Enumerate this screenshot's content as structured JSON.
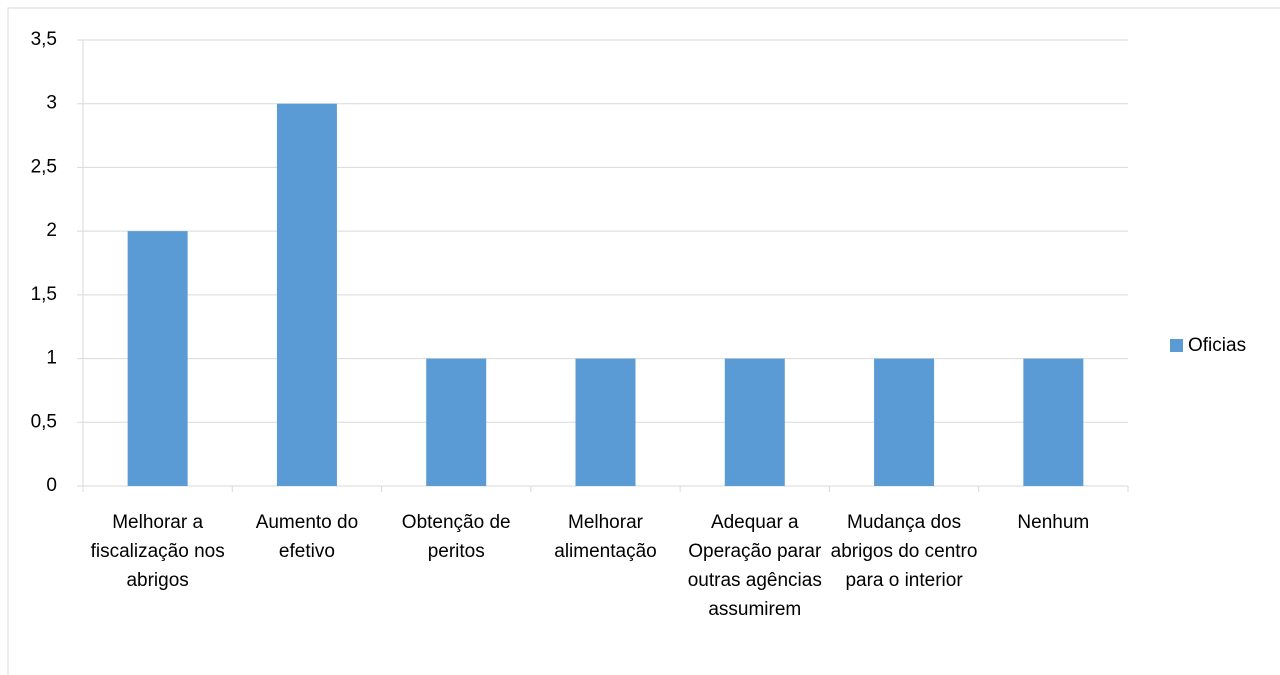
{
  "chart_data": {
    "type": "bar",
    "categories": [
      "Melhorar a fiscalização nos abrigos",
      "Aumento do efetivo",
      "Obtenção de peritos",
      "Melhorar alimentação",
      "Adequar a Operação parar outras agências assumirem",
      "Mudança dos abrigos do centro para o interior",
      "Nenhum"
    ],
    "series": [
      {
        "name": "Oficias",
        "color": "#5b9bd5",
        "values": [
          2,
          3,
          1,
          1,
          1,
          1,
          1
        ]
      }
    ],
    "ylim": [
      0,
      3.5
    ],
    "yticks": [
      0,
      {
        "value": 0.5,
        "label": "0,5"
      },
      1,
      {
        "value": 1.5,
        "label": "1,5"
      },
      2,
      {
        "value": 2.5,
        "label": "2,5"
      },
      3,
      {
        "value": 3.5,
        "label": "3,5"
      }
    ],
    "grid": true,
    "legend": "right"
  }
}
